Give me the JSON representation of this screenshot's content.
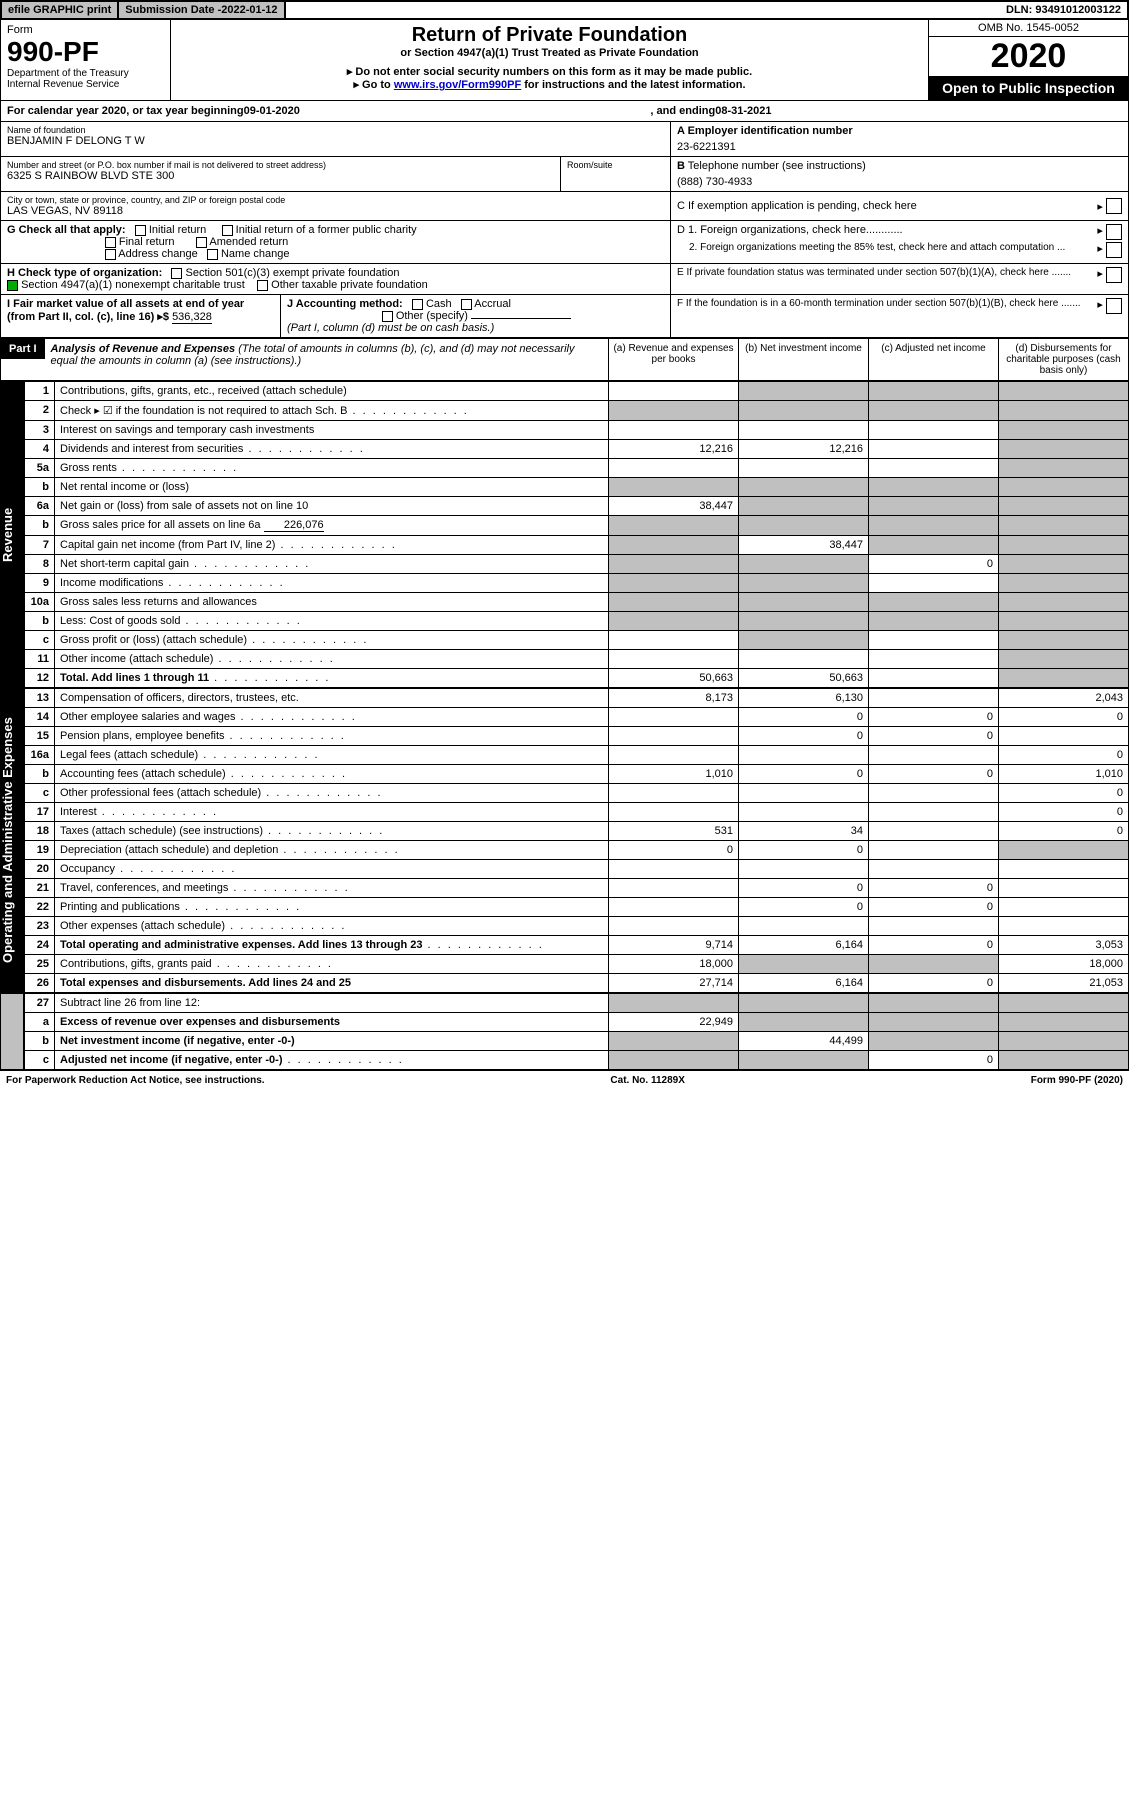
{
  "top": {
    "efile": "efile GRAPHIC print",
    "subdate_lbl": "Submission Date - ",
    "subdate": "2022-01-12",
    "dln_lbl": "DLN: ",
    "dln": "93491012003122"
  },
  "hdr": {
    "form": "Form",
    "num": "990-PF",
    "dept": "Department of the Treasury",
    "irs": "Internal Revenue Service",
    "title": "Return of Private Foundation",
    "sub": "or Section 4947(a)(1) Trust Treated as Private Foundation",
    "warn": "▸ Do not enter social security numbers on this form as it may be made public.",
    "go": "▸ Go to ",
    "url": "www.irs.gov/Form990PF",
    "go2": " for instructions and the latest information.",
    "omb": "OMB No. 1545-0052",
    "year": "2020",
    "open": "Open to Public Inspection"
  },
  "cal": {
    "txt1": "For calendar year 2020, or tax year beginning ",
    "begin": "09-01-2020",
    "txt2": ", and ending ",
    "end": "08-31-2021"
  },
  "id": {
    "name_lbl": "Name of foundation",
    "name": "BENJAMIN F DELONG T W",
    "addr_lbl": "Number and street (or P.O. box number if mail is not delivered to street address)",
    "addr": "6325 S RAINBOW BLVD STE 300",
    "room_lbl": "Room/suite",
    "city_lbl": "City or town, state or province, country, and ZIP or foreign postal code",
    "city": "LAS VEGAS, NV  89118",
    "a_lbl": "A Employer identification number",
    "ein": "23-6221391",
    "b_lbl": "B",
    "b_txt": " Telephone number (see instructions)",
    "phone": "(888) 730-4933",
    "c_txt": "C If exemption application is pending, check here",
    "d1": "D 1. Foreign organizations, check here............",
    "d2": "2. Foreign organizations meeting the 85% test, check here and attach computation ...",
    "e": "E  If private foundation status was terminated under section 507(b)(1)(A), check here .......",
    "f": "F  If the foundation is in a 60-month termination under section 507(b)(1)(B), check here .......",
    "g_lbl": "G Check all that apply:",
    "g1": "Initial return",
    "g2": "Initial return of a former public charity",
    "g3": "Final return",
    "g4": "Amended return",
    "g5": "Address change",
    "g6": "Name change",
    "h_lbl": "H Check type of organization:",
    "h1": "Section 501(c)(3) exempt private foundation",
    "h2": "Section 4947(a)(1) nonexempt charitable trust",
    "h3": "Other taxable private foundation",
    "i_lbl": "I Fair market value of all assets at end of year (from Part II, col. (c), line 16) ▸$ ",
    "i_val": "536,328",
    "j_lbl": "J Accounting method:",
    "j1": "Cash",
    "j2": "Accrual",
    "j3": "Other (specify)",
    "j_note": "(Part I, column (d) must be on cash basis.)"
  },
  "part1": {
    "hdr": "Part I",
    "title": "Analysis of Revenue and Expenses",
    "note": " (The total of amounts in columns (b), (c), and (d) may not necessarily equal the amounts in column (a) (see instructions).)",
    "ca": "(a)  Revenue and expenses per books",
    "cb": "(b)  Net investment income",
    "cc": "(c)  Adjusted net income",
    "cd": "(d)  Disbursements for charitable purposes (cash basis only)"
  },
  "side": {
    "rev": "Revenue",
    "exp": "Operating and Administrative Expenses"
  },
  "rows": [
    {
      "n": "1",
      "lbl": "Contributions, gifts, grants, etc., received (attach schedule)",
      "a": "",
      "b_s": 1,
      "c_s": 1,
      "d_s": 1
    },
    {
      "n": "2",
      "lbl": "Check ▸ ☑ if the foundation is not required to attach Sch. B",
      "dots": 1,
      "a_s": 1,
      "b_s": 1,
      "c_s": 1,
      "d_s": 1
    },
    {
      "n": "3",
      "lbl": "Interest on savings and temporary cash investments",
      "a": "",
      "b": "",
      "c": "",
      "d_s": 1
    },
    {
      "n": "4",
      "lbl": "Dividends and interest from securities",
      "dots": 1,
      "a": "12,216",
      "b": "12,216",
      "c": "",
      "d_s": 1
    },
    {
      "n": "5a",
      "lbl": "Gross rents",
      "dots": 1,
      "a": "",
      "b": "",
      "c": "",
      "d_s": 1
    },
    {
      "n": "b",
      "lbl": "Net rental income or (loss) ",
      "a_s": 1,
      "b_s": 1,
      "c_s": 1,
      "d_s": 1
    },
    {
      "n": "6a",
      "lbl": "Net gain or (loss) from sale of assets not on line 10",
      "a": "38,447",
      "b_s": 1,
      "c_s": 1,
      "d_s": 1
    },
    {
      "n": "b",
      "lbl": "Gross sales price for all assets on line 6a",
      "inval": "226,076",
      "a_s": 1,
      "b_s": 1,
      "c_s": 1,
      "d_s": 1
    },
    {
      "n": "7",
      "lbl": "Capital gain net income (from Part IV, line 2)",
      "dots": 1,
      "a_s": 1,
      "b": "38,447",
      "c_s": 1,
      "d_s": 1
    },
    {
      "n": "8",
      "lbl": "Net short-term capital gain",
      "dots": 1,
      "a_s": 1,
      "b_s": 1,
      "c": "0",
      "d_s": 1
    },
    {
      "n": "9",
      "lbl": "Income modifications",
      "dots": 1,
      "a_s": 1,
      "b_s": 1,
      "c": "",
      "d_s": 1
    },
    {
      "n": "10a",
      "lbl": "Gross sales less returns and allowances",
      "a_s": 1,
      "b_s": 1,
      "c_s": 1,
      "d_s": 1
    },
    {
      "n": "b",
      "lbl": "Less: Cost of goods sold",
      "dots": 1,
      "a_s": 1,
      "b_s": 1,
      "c_s": 1,
      "d_s": 1
    },
    {
      "n": "c",
      "lbl": "Gross profit or (loss) (attach schedule)",
      "dots": 1,
      "a": "",
      "b_s": 1,
      "c": "",
      "d_s": 1
    },
    {
      "n": "11",
      "lbl": "Other income (attach schedule)",
      "dots": 1,
      "a": "",
      "b": "",
      "c": "",
      "d_s": 1
    },
    {
      "n": "12",
      "lbl": "Total. Add lines 1 through 11",
      "bold": 1,
      "dots": 1,
      "a": "50,663",
      "b": "50,663",
      "c": "",
      "d_s": 1
    }
  ],
  "rows2": [
    {
      "n": "13",
      "lbl": "Compensation of officers, directors, trustees, etc.",
      "a": "8,173",
      "b": "6,130",
      "c": "",
      "d": "2,043"
    },
    {
      "n": "14",
      "lbl": "Other employee salaries and wages",
      "dots": 1,
      "a": "",
      "b": "0",
      "c": "0",
      "d": "0"
    },
    {
      "n": "15",
      "lbl": "Pension plans, employee benefits",
      "dots": 1,
      "a": "",
      "b": "0",
      "c": "0",
      "d": ""
    },
    {
      "n": "16a",
      "lbl": "Legal fees (attach schedule)",
      "dots": 1,
      "a": "",
      "b": "",
      "c": "",
      "d": "0"
    },
    {
      "n": "b",
      "lbl": "Accounting fees (attach schedule)",
      "dots": 1,
      "a": "1,010",
      "b": "0",
      "c": "0",
      "d": "1,010"
    },
    {
      "n": "c",
      "lbl": "Other professional fees (attach schedule)",
      "dots": 1,
      "a": "",
      "b": "",
      "c": "",
      "d": "0"
    },
    {
      "n": "17",
      "lbl": "Interest",
      "dots": 1,
      "a": "",
      "b": "",
      "c": "",
      "d": "0"
    },
    {
      "n": "18",
      "lbl": "Taxes (attach schedule) (see instructions)",
      "dots": 1,
      "a": "531",
      "b": "34",
      "c": "",
      "d": "0"
    },
    {
      "n": "19",
      "lbl": "Depreciation (attach schedule) and depletion",
      "dots": 1,
      "a": "0",
      "b": "0",
      "c": "",
      "d_s": 1
    },
    {
      "n": "20",
      "lbl": "Occupancy",
      "dots": 1,
      "a": "",
      "b": "",
      "c": "",
      "d": ""
    },
    {
      "n": "21",
      "lbl": "Travel, conferences, and meetings",
      "dots": 1,
      "a": "",
      "b": "0",
      "c": "0",
      "d": ""
    },
    {
      "n": "22",
      "lbl": "Printing and publications",
      "dots": 1,
      "a": "",
      "b": "0",
      "c": "0",
      "d": ""
    },
    {
      "n": "23",
      "lbl": "Other expenses (attach schedule)",
      "dots": 1,
      "a": "",
      "b": "",
      "c": "",
      "d": ""
    },
    {
      "n": "24",
      "lbl": "Total operating and administrative expenses. Add lines 13 through 23",
      "bold": 1,
      "dots": 1,
      "a": "9,714",
      "b": "6,164",
      "c": "0",
      "d": "3,053"
    },
    {
      "n": "25",
      "lbl": "Contributions, gifts, grants paid",
      "dots": 1,
      "a": "18,000",
      "b_s": 1,
      "c_s": 1,
      "d": "18,000"
    },
    {
      "n": "26",
      "lbl": "Total expenses and disbursements. Add lines 24 and 25",
      "bold": 1,
      "a": "27,714",
      "b": "6,164",
      "c": "0",
      "d": "21,053"
    }
  ],
  "rows3": [
    {
      "n": "27",
      "lbl": "Subtract line 26 from line 12:",
      "a_s": 1,
      "b_s": 1,
      "c_s": 1,
      "d_s": 1
    },
    {
      "n": "a",
      "lbl": "Excess of revenue over expenses and disbursements",
      "bold": 1,
      "a": "22,949",
      "b_s": 1,
      "c_s": 1,
      "d_s": 1
    },
    {
      "n": "b",
      "lbl": "Net investment income (if negative, enter -0-)",
      "bold": 1,
      "a_s": 1,
      "b": "44,499",
      "c_s": 1,
      "d_s": 1
    },
    {
      "n": "c",
      "lbl": "Adjusted net income (if negative, enter -0-)",
      "bold": 1,
      "dots": 1,
      "a_s": 1,
      "b_s": 1,
      "c": "0",
      "d_s": 1
    }
  ],
  "foot": {
    "l": "For Paperwork Reduction Act Notice, see instructions.",
    "c": "Cat. No. 11289X",
    "r": "Form 990-PF (2020)"
  },
  "colors": {
    "shade": "#c0c0c0",
    "link": "#0000cc"
  }
}
